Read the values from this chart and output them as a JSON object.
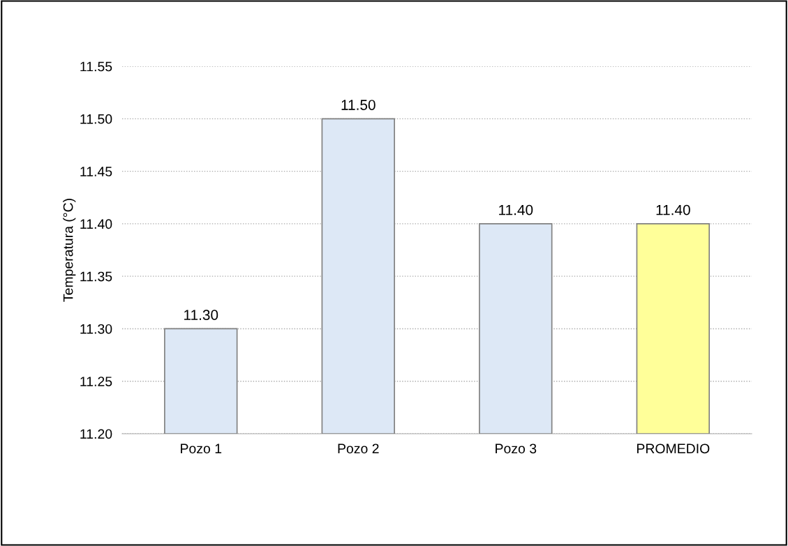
{
  "chart_data": {
    "type": "bar",
    "ylabel": "Temperatura (°C)",
    "categories": [
      "Pozo 1",
      "Pozo 2",
      "Pozo 3",
      "PROMEDIO"
    ],
    "values": [
      11.3,
      11.5,
      11.4,
      11.4
    ],
    "colors": [
      "#dde8f6",
      "#dde8f6",
      "#dde8f6",
      "#ffff99"
    ],
    "value_labels": [
      "11.30",
      "11.50",
      "11.40",
      "11.40"
    ],
    "ylim": [
      11.2,
      11.55
    ],
    "yticks": [
      {
        "value": 11.2,
        "label": "11.20"
      },
      {
        "value": 11.25,
        "label": "11.25"
      },
      {
        "value": 11.3,
        "label": "11.30"
      },
      {
        "value": 11.35,
        "label": "11.35"
      },
      {
        "value": 11.4,
        "label": "11.40"
      },
      {
        "value": 11.45,
        "label": "11.45"
      },
      {
        "value": 11.5,
        "label": "11.50"
      },
      {
        "value": 11.55,
        "label": "11.55"
      }
    ],
    "grid": "y"
  }
}
